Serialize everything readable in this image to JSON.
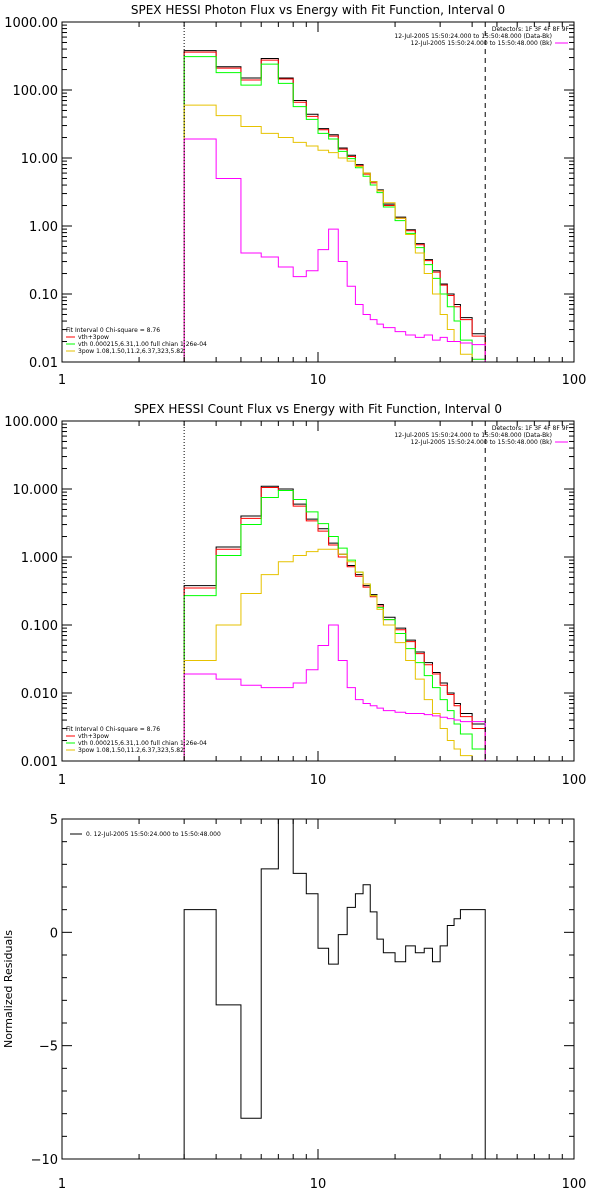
{
  "chart_data": [
    {
      "type": "line",
      "title": "SPEX HESSI Photon Flux vs Energy with Fit Function, Interval 0",
      "xlog": true,
      "ylog": true,
      "xlim": [
        1,
        100
      ],
      "ylim": [
        0.01,
        1000
      ],
      "xticks": [
        {
          "v": 1,
          "l": "1"
        },
        {
          "v": 10,
          "l": "10"
        },
        {
          "v": 100,
          "l": "100"
        }
      ],
      "yticks": [
        {
          "v": 1000,
          "l": "1000.00"
        },
        {
          "v": 100,
          "l": "100.00"
        },
        {
          "v": 10,
          "l": "10.00"
        },
        {
          "v": 1,
          "l": "1.00"
        },
        {
          "v": 0.1,
          "l": "0.10"
        },
        {
          "v": 0.01,
          "l": "0.01"
        }
      ],
      "vlines": [
        {
          "x": 3.0,
          "style": "dotted",
          "color": "#000000"
        },
        {
          "x": 45,
          "style": "dashed",
          "color": "#000000"
        }
      ],
      "edges": [
        3.0,
        3.5,
        4.0,
        4.5,
        5.0,
        6.0,
        7.0,
        8.0,
        9.0,
        10.0,
        11.0,
        12.0,
        13.0,
        14.0,
        15.0,
        16.0,
        17.0,
        18.0,
        20.0,
        22.0,
        24.0,
        26.0,
        28.0,
        30.0,
        32.0,
        34.0,
        36.0,
        40.0,
        45.0
      ],
      "series": [
        {
          "color": "#000000",
          "width": 1,
          "values": [
            380,
            380,
            220,
            220,
            150,
            290,
            150,
            70,
            44,
            27,
            22,
            14,
            11,
            8,
            6,
            4.5,
            3.4,
            2.1,
            1.35,
            0.88,
            0.55,
            0.32,
            0.22,
            0.14,
            0.1,
            0.07,
            0.045,
            0.026
          ]
        },
        {
          "color": "#ff0000",
          "width": 1,
          "values": [
            360,
            360,
            210,
            210,
            140,
            275,
            145,
            66,
            41,
            26,
            21,
            13.5,
            10.5,
            7.7,
            5.8,
            4.3,
            3.3,
            2,
            1.3,
            0.85,
            0.53,
            0.31,
            0.21,
            0.135,
            0.095,
            0.065,
            0.042,
            0.024
          ]
        },
        {
          "color": "#00ff00",
          "width": 1,
          "values": [
            310,
            310,
            180,
            180,
            118,
            240,
            125,
            57,
            37,
            23,
            19,
            12.5,
            9.8,
            7.2,
            5.4,
            4,
            3.1,
            1.9,
            1.2,
            0.78,
            0.48,
            0.27,
            0.17,
            0.1,
            0.065,
            0.04,
            0.021,
            0.011
          ]
        },
        {
          "color": "#e6c200",
          "width": 1,
          "values": [
            60,
            60,
            42,
            42,
            29,
            23,
            20,
            17,
            15,
            13,
            12,
            10,
            9,
            7.5,
            6,
            4.5,
            3.3,
            2.2,
            1.3,
            0.75,
            0.4,
            0.2,
            0.1,
            0.05,
            0.03,
            0.02,
            0.013,
            0.01
          ]
        },
        {
          "color": "#ff00ff",
          "width": 1,
          "values": [
            19,
            19,
            5,
            5,
            0.4,
            0.35,
            0.25,
            0.18,
            0.22,
            0.45,
            0.9,
            0.3,
            0.13,
            0.07,
            0.05,
            0.042,
            0.036,
            0.032,
            0.028,
            0.025,
            0.023,
            0.025,
            0.021,
            0.023,
            0.02,
            0.02,
            0.019,
            0.018
          ]
        }
      ],
      "info_lines": [
        "Detectors: 1F 3F 4F 8F 9F",
        "12-Jul-2005 15:50:24.000 to 15:50:48.000 (Data-Bk)",
        "12-Jul-2005 15:50:24.000 to 15:50:48.000 (Bk)"
      ],
      "info_color": "#ff00ff",
      "legend": [
        {
          "text": "Fit Interval  0   Chi-square = 8.76",
          "color": ""
        },
        {
          "text": "vth+3pow",
          "color": "#ff0000"
        },
        {
          "text": "vth 0.000215,6.31,1.00  full chian 1.26e-04",
          "color": "#00ff00"
        },
        {
          "text": "3pow 1.08,1.50,11.2,6.37,323,5.82",
          "color": "#e6c200"
        }
      ]
    },
    {
      "type": "line",
      "title": "SPEX HESSI Count Flux vs Energy with Fit Function, Interval 0",
      "xlog": true,
      "ylog": true,
      "xlim": [
        1,
        100
      ],
      "ylim": [
        0.001,
        100
      ],
      "xticks": [
        {
          "v": 1,
          "l": "1"
        },
        {
          "v": 10,
          "l": "10"
        },
        {
          "v": 100,
          "l": "100"
        }
      ],
      "yticks": [
        {
          "v": 100,
          "l": "100.000"
        },
        {
          "v": 10,
          "l": "10.000"
        },
        {
          "v": 1,
          "l": "1.000"
        },
        {
          "v": 0.1,
          "l": "0.100"
        },
        {
          "v": 0.01,
          "l": "0.010"
        },
        {
          "v": 0.001,
          "l": "0.001"
        }
      ],
      "vlines": [
        {
          "x": 3.0,
          "style": "dotted",
          "color": "#000000"
        },
        {
          "x": 45,
          "style": "dashed",
          "color": "#000000"
        }
      ],
      "edges": [
        3.0,
        4.0,
        5.0,
        6.0,
        7.0,
        8.0,
        9.0,
        10.0,
        11.0,
        12.0,
        13.0,
        14.0,
        15.0,
        16.0,
        17.0,
        18.0,
        20.0,
        22.0,
        24.0,
        26.0,
        28.0,
        30.0,
        32.0,
        34.0,
        36.0,
        40.0,
        45.0
      ],
      "series": [
        {
          "color": "#000000",
          "width": 1,
          "values": [
            0.38,
            1.4,
            4.0,
            11,
            10,
            6,
            3.6,
            2.6,
            1.6,
            1.1,
            0.75,
            0.55,
            0.38,
            0.28,
            0.2,
            0.13,
            0.09,
            0.06,
            0.04,
            0.028,
            0.02,
            0.014,
            0.01,
            0.007,
            0.005,
            0.0035
          ]
        },
        {
          "color": "#ff0000",
          "width": 1,
          "values": [
            0.35,
            1.3,
            3.7,
            10.5,
            9.5,
            5.6,
            3.4,
            2.4,
            1.5,
            1.0,
            0.72,
            0.52,
            0.36,
            0.26,
            0.19,
            0.12,
            0.085,
            0.057,
            0.038,
            0.026,
            0.019,
            0.013,
            0.0095,
            0.0065,
            0.0045,
            0.003
          ]
        },
        {
          "color": "#00ff00",
          "width": 1,
          "values": [
            0.27,
            1.05,
            3.0,
            7.5,
            9.5,
            7.0,
            4.6,
            3.1,
            2.0,
            1.35,
            0.9,
            0.6,
            0.4,
            0.27,
            0.18,
            0.12,
            0.075,
            0.045,
            0.028,
            0.018,
            0.012,
            0.008,
            0.0055,
            0.0035,
            0.0025,
            0.0015
          ]
        },
        {
          "color": "#e6c200",
          "width": 1,
          "values": [
            0.03,
            0.1,
            0.29,
            0.55,
            0.85,
            1.05,
            1.2,
            1.3,
            1.3,
            1.1,
            0.85,
            0.6,
            0.4,
            0.27,
            0.17,
            0.1,
            0.055,
            0.03,
            0.016,
            0.008,
            0.005,
            0.003,
            0.002,
            0.0015,
            0.0012,
            0.001
          ]
        },
        {
          "color": "#ff00ff",
          "width": 1,
          "values": [
            0.019,
            0.016,
            0.013,
            0.012,
            0.012,
            0.014,
            0.022,
            0.05,
            0.1,
            0.03,
            0.012,
            0.008,
            0.007,
            0.0065,
            0.006,
            0.0055,
            0.0052,
            0.005,
            0.005,
            0.0048,
            0.0046,
            0.0044,
            0.0042,
            0.004,
            0.0038,
            0.0038
          ]
        }
      ],
      "info_lines": [
        "Detectors: 1F 3F 4F 8F 9F",
        "12-Jul-2005 15:50:24.000 to 15:50:48.000 (Data-Bk)",
        "12-Jul-2005 15:50:24.000 to 15:50:48.000 (Bk)"
      ],
      "info_color": "#ff00ff",
      "legend": [
        {
          "text": "Fit Interval  0   Chi-square = 8.76",
          "color": ""
        },
        {
          "text": "vth+3pow",
          "color": "#ff0000"
        },
        {
          "text": "vth 0.000215,6.31,1.00  full chian 1.26e-04",
          "color": "#00ff00"
        },
        {
          "text": "3pow 1.08,1.50,11.2,6.37,323,5.82",
          "color": "#e6c200"
        }
      ]
    },
    {
      "type": "line",
      "title": "",
      "xlog": true,
      "ylog": false,
      "xlim": [
        1,
        100
      ],
      "ylim": [
        -10,
        5
      ],
      "ylabel": "Normalized Residuals",
      "xticks": [
        {
          "v": 1,
          "l": "1"
        },
        {
          "v": 10,
          "l": "10"
        },
        {
          "v": 100,
          "l": "100"
        }
      ],
      "yticks": [
        {
          "v": 5,
          "l": "5"
        },
        {
          "v": 0,
          "l": "0"
        },
        {
          "v": -5,
          "l": "−5"
        },
        {
          "v": -10,
          "l": "−10"
        }
      ],
      "vlines": [],
      "edges": [
        3.0,
        4.0,
        5.0,
        6.0,
        7.0,
        8.0,
        9.0,
        10.0,
        11.0,
        12.0,
        13.0,
        14.0,
        15.0,
        16.0,
        17.0,
        18.0,
        20.0,
        22.0,
        24.0,
        26.0,
        28.0,
        30.0,
        32.0,
        34.0,
        36.0,
        40.0,
        45.0
      ],
      "series": [
        {
          "color": "#000000",
          "width": 1,
          "values": [
            1.0,
            -3.2,
            -8.2,
            2.8,
            5.0,
            2.6,
            1.7,
            -0.7,
            -1.4,
            -0.1,
            1.1,
            1.7,
            2.1,
            0.9,
            -0.3,
            -0.9,
            -1.3,
            -0.6,
            -0.9,
            -0.7,
            -1.3,
            -0.6,
            0.3,
            0.6,
            1.0,
            1.0
          ]
        }
      ],
      "info_lines": [],
      "info_color": "",
      "legend": [
        {
          "text": "0. 12-Jul-2005 15:50:24.000 to 15:50:48.000",
          "color": "#000000",
          "marker": "line"
        }
      ]
    }
  ]
}
